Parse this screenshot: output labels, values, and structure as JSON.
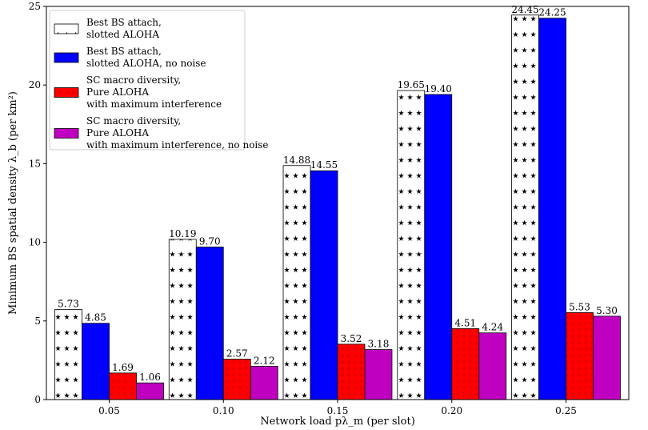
{
  "chart_data": {
    "type": "bar",
    "categories": [
      "0.05",
      "0.10",
      "0.15",
      "0.20",
      "0.25"
    ],
    "xlabel": "Network load pλ_m (per slot)",
    "ylabel": "Minimum BS spatial density λ_b (per km²)",
    "ylim": [
      0,
      25
    ],
    "yticks": [
      0,
      5,
      10,
      15,
      20,
      25
    ],
    "grid": false,
    "legend_position": "top-left",
    "series": [
      {
        "name": "Best BS attach,\nslotted ALOHA",
        "values": [
          5.73,
          10.19,
          14.88,
          19.65,
          24.45
        ],
        "labels": [
          "5.73",
          "10.19",
          "14.88",
          "19.65",
          "24.45"
        ],
        "color": "#ffffff",
        "pattern": "stars"
      },
      {
        "name": "Best BS attach,\nslotted ALOHA, no noise",
        "values": [
          4.85,
          9.7,
          14.55,
          19.4,
          24.25
        ],
        "labels": [
          "4.85",
          "9.70",
          "14.55",
          "19.40",
          "24.25"
        ],
        "color": "#0000ff",
        "pattern": "none"
      },
      {
        "name": "SC macro diversity,\nPure ALOHA\nwith maximum interference",
        "values": [
          1.69,
          2.57,
          3.52,
          4.51,
          5.53
        ],
        "labels": [
          "1.69",
          "2.57",
          "3.52",
          "4.51",
          "5.53"
        ],
        "color": "#ff0000",
        "pattern": "dots"
      },
      {
        "name": "SC macro diversity,\nPure ALOHA\nwith maximum interference, no noise",
        "values": [
          1.06,
          2.12,
          3.18,
          4.24,
          5.3
        ],
        "labels": [
          "1.06",
          "2.12",
          "3.18",
          "4.24",
          "5.30"
        ],
        "color": "#c000c0",
        "pattern": "none"
      }
    ]
  }
}
